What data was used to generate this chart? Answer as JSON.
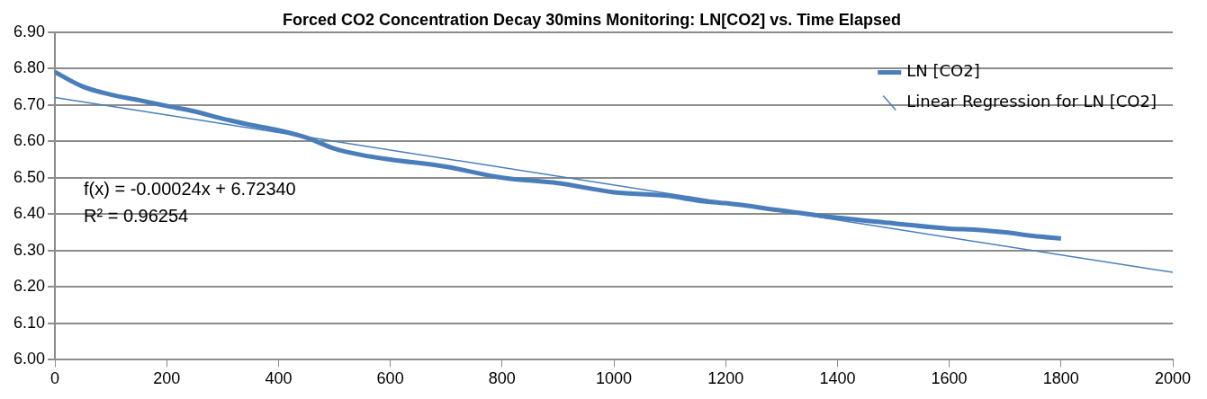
{
  "chart_data": {
    "type": "line",
    "title": "Forced CO2 Concentration Decay 30mins Monitoring: LN[CO2] vs. Time Elapsed",
    "series": [
      {
        "name": "LN [CO2]",
        "color": "#4a7ebb",
        "x": [
          0,
          50,
          100,
          150,
          200,
          250,
          300,
          350,
          400,
          450,
          500,
          550,
          600,
          700,
          800,
          900,
          1000,
          1100,
          1150,
          1200,
          1300,
          1400,
          1500,
          1600,
          1650,
          1700,
          1750,
          1800
        ],
        "values": [
          6.79,
          6.75,
          6.728,
          6.713,
          6.697,
          6.682,
          6.662,
          6.645,
          6.63,
          6.61,
          6.58,
          6.562,
          6.55,
          6.53,
          6.5,
          6.485,
          6.46,
          6.45,
          6.437,
          6.43,
          6.41,
          6.39,
          6.375,
          6.36,
          6.357,
          6.35,
          6.34,
          6.333
        ]
      },
      {
        "name": "Linear Regression for LN [CO2]",
        "color": "#4a7ebb",
        "x": [
          0,
          2000
        ],
        "values": [
          6.72,
          6.24
        ]
      }
    ],
    "xlim": [
      0,
      2000
    ],
    "xticks": [
      0,
      200,
      400,
      600,
      800,
      1000,
      1200,
      1400,
      1600,
      1800,
      2000
    ],
    "ylim": [
      6,
      6.9
    ],
    "yticks": [
      {
        "value": 6,
        "label": "6.00"
      },
      {
        "value": 6.1,
        "label": "6.10"
      },
      {
        "value": 6.2,
        "label": "6.20"
      },
      {
        "value": 6.3,
        "label": "6.30"
      },
      {
        "value": 6.4,
        "label": "6.40"
      },
      {
        "value": 6.5,
        "label": "6.50"
      },
      {
        "value": 6.6,
        "label": "6.60"
      },
      {
        "value": 6.7,
        "label": "6.70"
      },
      {
        "value": 6.8,
        "label": "6.80"
      },
      {
        "value": 6.9,
        "label": "6.90"
      }
    ],
    "grid": "y",
    "legend": "top right",
    "marker": "none",
    "annotations": [
      "f(x) = -0.00024x + 6.72340",
      "R² = 0.96254"
    ]
  }
}
